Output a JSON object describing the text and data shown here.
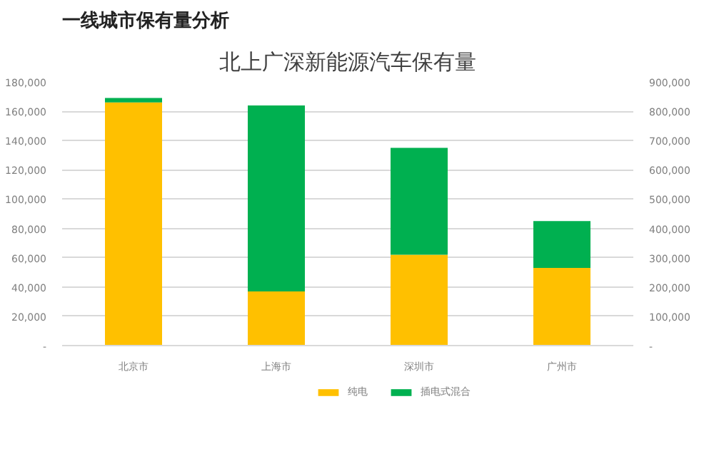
{
  "chart_data": {
    "type": "bar",
    "title": "北上广深新能源汽车保有量",
    "annotations": [
      "一线城市保有量分析"
    ],
    "categories": [
      "北京市",
      "上海市",
      "深圳市",
      "广州市"
    ],
    "stacked": true,
    "series": [
      {
        "name": "纯电",
        "color": "#ffc000",
        "values": [
          166000,
          37000,
          62000,
          53000
        ]
      },
      {
        "name": "插电式混合",
        "color": "#00b050",
        "values": [
          3000,
          127000,
          73000,
          32000
        ]
      }
    ],
    "ylim": [
      0,
      180000
    ],
    "yticks": [
      {
        "value": 0,
        "label": "-"
      },
      {
        "value": 20000,
        "label": "20,000"
      },
      {
        "value": 40000,
        "label": "40,000"
      },
      {
        "value": 60000,
        "label": "60,000"
      },
      {
        "value": 80000,
        "label": "80,000"
      },
      {
        "value": 100000,
        "label": "100,000"
      },
      {
        "value": 120000,
        "label": "120,000"
      },
      {
        "value": 140000,
        "label": "140,000"
      },
      {
        "value": 160000,
        "label": "160,000"
      },
      {
        "value": 180000,
        "label": "180,000"
      }
    ],
    "y2lim": [
      0,
      900000
    ],
    "y2ticks": [
      {
        "value": 0,
        "label": "-"
      },
      {
        "value": 100000,
        "label": "100,000"
      },
      {
        "value": 200000,
        "label": "200,000"
      },
      {
        "value": 300000,
        "label": "300,000"
      },
      {
        "value": 400000,
        "label": "400,000"
      },
      {
        "value": 500000,
        "label": "500,000"
      },
      {
        "value": 600000,
        "label": "600,000"
      },
      {
        "value": 700000,
        "label": "700,000"
      },
      {
        "value": 800000,
        "label": "800,000"
      },
      {
        "value": 900000,
        "label": "900,000"
      }
    ],
    "grid": "y",
    "legend": "bottom"
  }
}
